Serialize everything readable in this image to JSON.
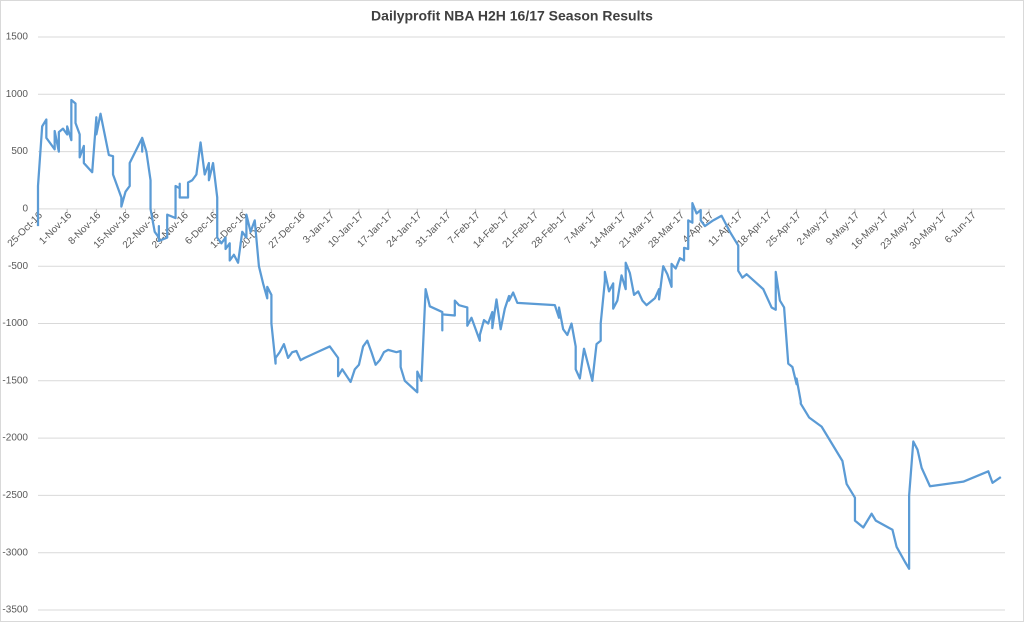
{
  "chart_data": {
    "type": "line",
    "title": "Dailyprofit NBA H2H 16/17 Season Results",
    "color": "#5b9bd5",
    "grid": true,
    "xlim": [
      "2016-10-25",
      "2017-06-14"
    ],
    "xticks": [
      {
        "value": "2016-10-25",
        "label": "25-Oct-16"
      },
      {
        "value": "2016-11-01",
        "label": "1-Nov-16"
      },
      {
        "value": "2016-11-08",
        "label": "8-Nov-16"
      },
      {
        "value": "2016-11-15",
        "label": "15-Nov-16"
      },
      {
        "value": "2016-11-22",
        "label": "22-Nov-16"
      },
      {
        "value": "2016-11-29",
        "label": "29-Nov-16"
      },
      {
        "value": "2016-12-06",
        "label": "6-Dec-16"
      },
      {
        "value": "2016-12-13",
        "label": "13-Dec-16"
      },
      {
        "value": "2016-12-20",
        "label": "20-Dec-16"
      },
      {
        "value": "2016-12-27",
        "label": "27-Dec-16"
      },
      {
        "value": "2017-01-03",
        "label": "3-Jan-17"
      },
      {
        "value": "2017-01-10",
        "label": "10-Jan-17"
      },
      {
        "value": "2017-01-17",
        "label": "17-Jan-17"
      },
      {
        "value": "2017-01-24",
        "label": "24-Jan-17"
      },
      {
        "value": "2017-01-31",
        "label": "31-Jan-17"
      },
      {
        "value": "2017-02-07",
        "label": "7-Feb-17"
      },
      {
        "value": "2017-02-14",
        "label": "14-Feb-17"
      },
      {
        "value": "2017-02-21",
        "label": "21-Feb-17"
      },
      {
        "value": "2017-02-28",
        "label": "28-Feb-17"
      },
      {
        "value": "2017-03-07",
        "label": "7-Mar-17"
      },
      {
        "value": "2017-03-14",
        "label": "14-Mar-17"
      },
      {
        "value": "2017-03-21",
        "label": "21-Mar-17"
      },
      {
        "value": "2017-03-28",
        "label": "28-Mar-17"
      },
      {
        "value": "2017-04-04",
        "label": "4-Apr-17"
      },
      {
        "value": "2017-04-11",
        "label": "11-Apr-17"
      },
      {
        "value": "2017-04-18",
        "label": "18-Apr-17"
      },
      {
        "value": "2017-04-25",
        "label": "25-Apr-17"
      },
      {
        "value": "2017-05-02",
        "label": "2-May-17"
      },
      {
        "value": "2017-05-09",
        "label": "9-May-17"
      },
      {
        "value": "2017-05-16",
        "label": "16-May-17"
      },
      {
        "value": "2017-05-23",
        "label": "23-May-17"
      },
      {
        "value": "2017-05-30",
        "label": "30-May-17"
      },
      {
        "value": "2017-06-06",
        "label": "6-Jun-17"
      }
    ],
    "ylim": [
      -3500,
      1500
    ],
    "yticks": [
      1500,
      1000,
      500,
      0,
      -500,
      -1000,
      -1500,
      -2000,
      -2500,
      -3000,
      -3500
    ],
    "x": [
      "2016-10-25",
      "2016-10-25",
      "2016-10-26",
      "2016-10-27",
      "2016-10-27",
      "2016-10-29",
      "2016-10-29",
      "2016-10-30",
      "2016-10-30",
      "2016-10-31",
      "2016-11-01",
      "2016-11-01",
      "2016-11-02",
      "2016-11-02",
      "2016-11-03",
      "2016-11-03",
      "2016-11-04",
      "2016-11-04",
      "2016-11-05",
      "2016-11-05",
      "2016-11-07",
      "2016-11-08",
      "2016-11-08",
      "2016-11-09",
      "2016-11-10",
      "2016-11-11",
      "2016-11-12",
      "2016-11-12",
      "2016-11-14",
      "2016-11-14",
      "2016-11-15",
      "2016-11-16",
      "2016-11-16",
      "2016-11-19",
      "2016-11-19",
      "2016-11-19",
      "2016-11-20",
      "2016-11-21",
      "2016-11-21",
      "2016-11-22",
      "2016-11-23",
      "2016-11-23",
      "2016-11-23",
      "2016-11-25",
      "2016-11-25",
      "2016-11-25",
      "2016-11-27",
      "2016-11-27",
      "2016-11-28",
      "2016-11-28",
      "2016-11-28",
      "2016-11-30",
      "2016-11-30",
      "2016-12-01",
      "2016-12-02",
      "2016-12-03",
      "2016-12-04",
      "2016-12-05",
      "2016-12-05",
      "2016-12-06",
      "2016-12-07",
      "2016-12-07",
      "2016-12-08",
      "2016-12-09",
      "2016-12-09",
      "2016-12-10",
      "2016-12-10",
      "2016-12-11",
      "2016-12-12",
      "2016-12-13",
      "2016-12-14",
      "2016-12-14",
      "2016-12-15",
      "2016-12-16",
      "2016-12-17",
      "2016-12-18",
      "2016-12-19",
      "2016-12-19",
      "2016-12-20",
      "2016-12-20",
      "2016-12-21",
      "2016-12-21",
      "2016-12-22",
      "2016-12-23",
      "2016-12-24",
      "2016-12-25",
      "2016-12-26",
      "2016-12-27",
      "2016-12-28",
      "2016-12-31",
      "2017-01-03",
      "2017-01-05",
      "2017-01-05",
      "2017-01-06",
      "2017-01-08",
      "2017-01-09",
      "2017-01-10",
      "2017-01-11",
      "2017-01-12",
      "2017-01-13",
      "2017-01-14",
      "2017-01-15",
      "2017-01-16",
      "2017-01-17",
      "2017-01-19",
      "2017-01-20",
      "2017-01-20",
      "2017-01-21",
      "2017-01-24",
      "2017-01-24",
      "2017-01-25",
      "2017-01-26",
      "2017-01-27",
      "2017-01-30",
      "2017-01-30",
      "2017-01-30",
      "2017-02-02",
      "2017-02-02",
      "2017-02-03",
      "2017-02-05",
      "2017-02-05",
      "2017-02-06",
      "2017-02-07",
      "2017-02-08",
      "2017-02-08",
      "2017-02-09",
      "2017-02-10",
      "2017-02-11",
      "2017-02-11",
      "2017-02-11",
      "2017-02-12",
      "2017-02-13",
      "2017-02-14",
      "2017-02-15",
      "2017-02-15",
      "2017-02-16",
      "2017-02-17",
      "2017-02-26",
      "2017-02-27",
      "2017-02-27",
      "2017-02-28",
      "2017-03-01",
      "2017-03-02",
      "2017-03-03",
      "2017-03-03",
      "2017-03-04",
      "2017-03-05",
      "2017-03-06",
      "2017-03-07",
      "2017-03-08",
      "2017-03-09",
      "2017-03-09",
      "2017-03-10",
      "2017-03-10",
      "2017-03-11",
      "2017-03-12",
      "2017-03-12",
      "2017-03-13",
      "2017-03-14",
      "2017-03-15",
      "2017-03-15",
      "2017-03-16",
      "2017-03-17",
      "2017-03-18",
      "2017-03-19",
      "2017-03-20",
      "2017-03-22",
      "2017-03-23",
      "2017-03-23",
      "2017-03-24",
      "2017-03-25",
      "2017-03-26",
      "2017-03-26",
      "2017-03-27",
      "2017-03-28",
      "2017-03-29",
      "2017-03-29",
      "2017-03-30",
      "2017-03-30",
      "2017-03-31",
      "2017-03-31",
      "2017-04-01",
      "2017-04-02",
      "2017-04-02",
      "2017-04-03",
      "2017-04-05",
      "2017-04-07",
      "2017-04-09",
      "2017-04-11",
      "2017-04-11",
      "2017-04-12",
      "2017-04-13",
      "2017-04-17",
      "2017-04-19",
      "2017-04-20",
      "2017-04-20",
      "2017-04-21",
      "2017-04-22",
      "2017-04-23",
      "2017-04-24",
      "2017-04-25",
      "2017-04-25",
      "2017-04-26",
      "2017-04-26",
      "2017-04-28",
      "2017-05-01",
      "2017-05-03",
      "2017-05-06",
      "2017-05-07",
      "2017-05-09",
      "2017-05-09",
      "2017-05-11",
      "2017-05-13",
      "2017-05-14",
      "2017-05-18",
      "2017-05-19",
      "2017-05-21",
      "2017-05-22",
      "2017-05-22",
      "2017-05-23",
      "2017-05-24",
      "2017-05-25",
      "2017-05-27",
      "2017-06-04",
      "2017-06-10",
      "2017-06-11",
      "2017-06-13"
    ],
    "values": [
      -150,
      200,
      720,
      780,
      620,
      520,
      680,
      500,
      670,
      700,
      650,
      720,
      600,
      950,
      920,
      750,
      650,
      450,
      550,
      400,
      320,
      800,
      650,
      830,
      650,
      470,
      460,
      300,
      100,
      20,
      150,
      200,
      400,
      620,
      500,
      620,
      500,
      250,
      0,
      -200,
      -250,
      -150,
      -280,
      -250,
      -220,
      -50,
      -80,
      200,
      180,
      220,
      100,
      100,
      230,
      250,
      300,
      580,
      300,
      400,
      250,
      400,
      100,
      -250,
      -300,
      -250,
      -350,
      -300,
      -450,
      -400,
      -470,
      -200,
      -250,
      -50,
      -200,
      -100,
      -500,
      -650,
      -780,
      -680,
      -750,
      -1000,
      -1350,
      -1300,
      -1250,
      -1180,
      -1300,
      -1250,
      -1240,
      -1320,
      -1300,
      -1250,
      -1200,
      -1300,
      -1460,
      -1400,
      -1510,
      -1400,
      -1360,
      -1200,
      -1150,
      -1250,
      -1360,
      -1320,
      -1250,
      -1230,
      -1250,
      -1240,
      -1380,
      -1500,
      -1600,
      -1420,
      -1500,
      -700,
      -850,
      -900,
      -1060,
      -920,
      -930,
      -800,
      -840,
      -860,
      -1020,
      -950,
      -1050,
      -1150,
      -1100,
      -970,
      -1000,
      -900,
      -960,
      -1040,
      -790,
      -1050,
      -870,
      -760,
      -800,
      -730,
      -820,
      -840,
      -950,
      -860,
      -1050,
      -1100,
      -1000,
      -1200,
      -1400,
      -1480,
      -1220,
      -1360,
      -1500,
      -1180,
      -1150,
      -1000,
      -630,
      -550,
      -720,
      -650,
      -870,
      -800,
      -580,
      -700,
      -470,
      -560,
      -750,
      -720,
      -800,
      -840,
      -780,
      -700,
      -790,
      -500,
      -570,
      -680,
      -480,
      -520,
      -430,
      -450,
      -340,
      -350,
      -100,
      -120,
      50,
      -40,
      -10,
      -100,
      -150,
      -100,
      -60,
      -200,
      -320,
      -540,
      -600,
      -570,
      -700,
      -860,
      -880,
      -550,
      -800,
      -860,
      -1350,
      -1380,
      -1530,
      -1480,
      -1680,
      -1700,
      -1820,
      -1900,
      -2020,
      -2200,
      -2400,
      -2520,
      -2720,
      -2780,
      -2660,
      -2720,
      -2800,
      -2950,
      -3080,
      -3140,
      -2500,
      -2030,
      -2100,
      -2260,
      -2420,
      -2380,
      -2290,
      -2390,
      -2340
    ]
  }
}
